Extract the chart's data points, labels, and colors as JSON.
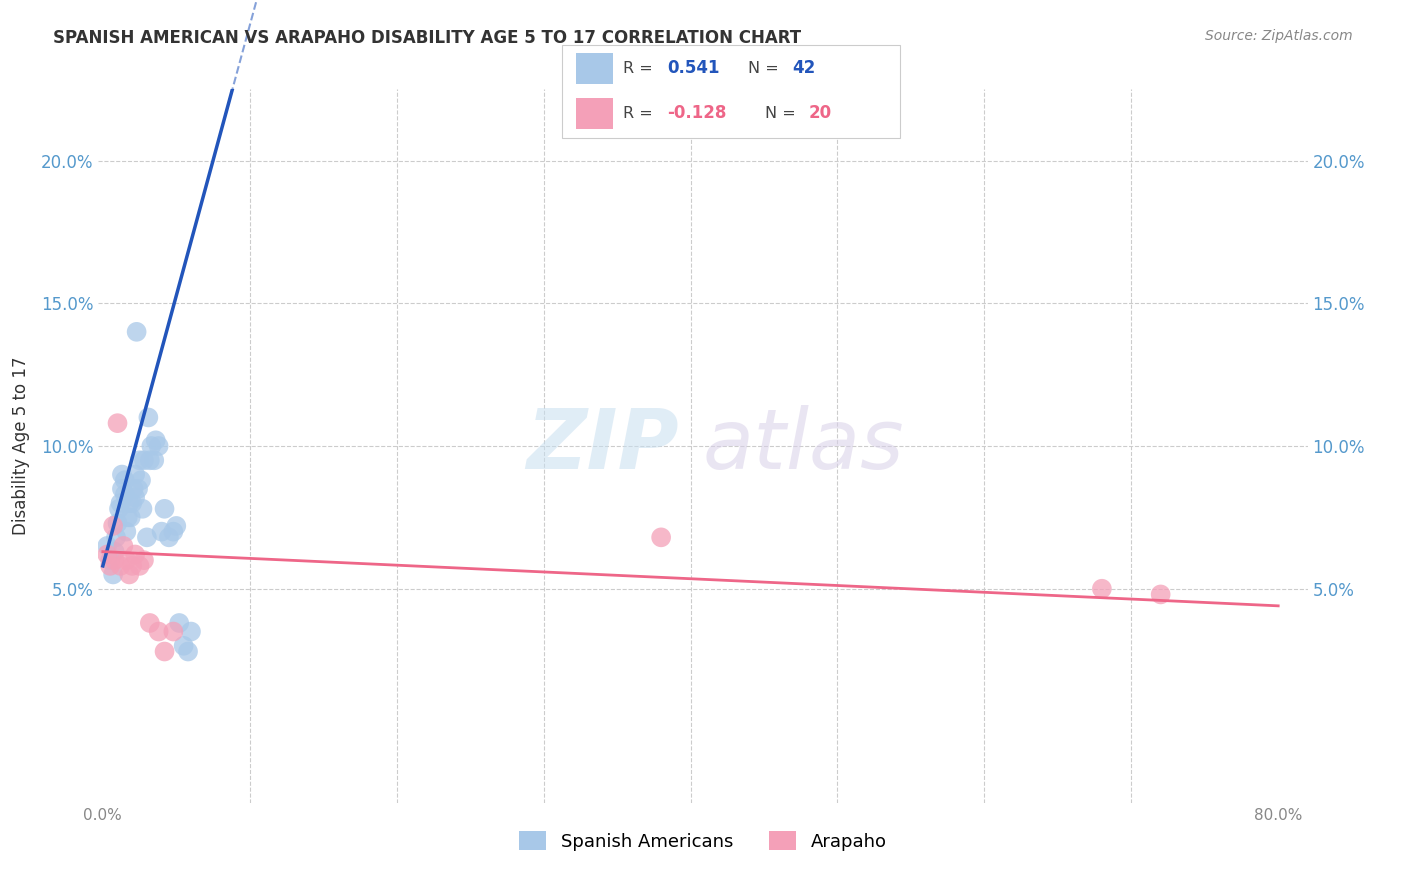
{
  "title": "SPANISH AMERICAN VS ARAPAHO DISABILITY AGE 5 TO 17 CORRELATION CHART",
  "source": "Source: ZipAtlas.com",
  "ylabel": "Disability Age 5 to 17",
  "ytick_labels": [
    "5.0%",
    "10.0%",
    "15.0%",
    "20.0%"
  ],
  "ytick_values": [
    0.05,
    0.1,
    0.15,
    0.2
  ],
  "xlim": [
    -0.003,
    0.82
  ],
  "ylim": [
    -0.025,
    0.225
  ],
  "blue_color": "#a8c8e8",
  "pink_color": "#f4a0b8",
  "blue_line_color": "#2255bb",
  "pink_line_color": "#ee6688",
  "watermark_zip": "ZIP",
  "watermark_atlas": "atlas",
  "blue_scatter_x": [
    0.003,
    0.005,
    0.007,
    0.008,
    0.009,
    0.01,
    0.011,
    0.012,
    0.013,
    0.013,
    0.015,
    0.015,
    0.016,
    0.017,
    0.018,
    0.019,
    0.02,
    0.021,
    0.022,
    0.022,
    0.023,
    0.024,
    0.025,
    0.026,
    0.027,
    0.028,
    0.03,
    0.031,
    0.032,
    0.033,
    0.035,
    0.036,
    0.038,
    0.04,
    0.042,
    0.045,
    0.048,
    0.05,
    0.052,
    0.055,
    0.058,
    0.06
  ],
  "blue_scatter_y": [
    0.065,
    0.06,
    0.055,
    0.063,
    0.068,
    0.073,
    0.078,
    0.08,
    0.085,
    0.09,
    0.083,
    0.088,
    0.07,
    0.075,
    0.08,
    0.075,
    0.08,
    0.085,
    0.082,
    0.09,
    0.14,
    0.085,
    0.095,
    0.088,
    0.078,
    0.095,
    0.068,
    0.11,
    0.095,
    0.1,
    0.095,
    0.102,
    0.1,
    0.07,
    0.078,
    0.068,
    0.07,
    0.072,
    0.038,
    0.03,
    0.028,
    0.035
  ],
  "pink_scatter_x": [
    0.003,
    0.005,
    0.007,
    0.008,
    0.01,
    0.012,
    0.014,
    0.016,
    0.018,
    0.02,
    0.022,
    0.025,
    0.028,
    0.032,
    0.038,
    0.042,
    0.048,
    0.38,
    0.68,
    0.72
  ],
  "pink_scatter_y": [
    0.062,
    0.058,
    0.072,
    0.06,
    0.108,
    0.058,
    0.065,
    0.06,
    0.055,
    0.058,
    0.062,
    0.058,
    0.06,
    0.038,
    0.035,
    0.028,
    0.035,
    0.068,
    0.05,
    0.048
  ],
  "blue_line_x0": 0.0,
  "blue_line_y0": 0.058,
  "blue_line_x1": 0.075,
  "blue_line_y1": 0.2,
  "pink_line_x0": 0.0,
  "pink_line_y0": 0.063,
  "pink_line_x1": 0.8,
  "pink_line_y1": 0.044
}
